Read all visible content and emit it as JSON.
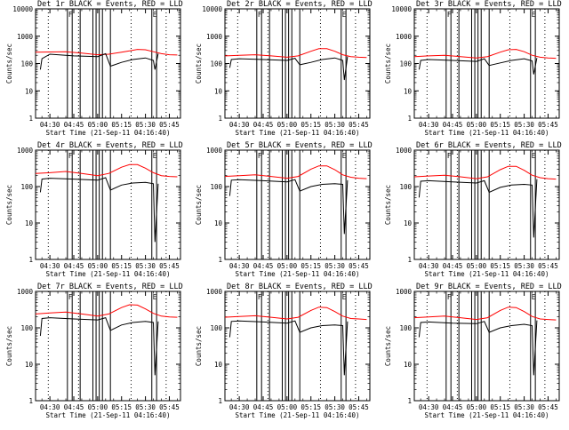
{
  "chart_data": [
    {
      "type": "line",
      "title": "Det 1r BLACK = Events, RED = LLD",
      "xlabel": "Start Time (21-Sep-11 04:16:40)",
      "ylabel": "Counts/sec",
      "yscale": "log",
      "ylim": [
        1,
        10000
      ],
      "xlim": [
        "04:21",
        "05:52"
      ],
      "y_tick_labels": [
        "1",
        "10",
        "100",
        "1000",
        "10000"
      ],
      "x_tick_labels": [
        "04:30",
        "04:45",
        "05:00",
        "05:15",
        "05:30",
        "05:45"
      ],
      "flags": [
        "F",
        "E"
      ],
      "series": [
        {
          "color": "#ff0000",
          "x": [
            "04:21",
            "04:30",
            "04:40",
            "04:50",
            "05:00",
            "05:07",
            "05:15",
            "05:20",
            "05:25",
            "05:30",
            "05:35",
            "05:40",
            "05:45",
            "05:50"
          ],
          "values": [
            260,
            265,
            270,
            240,
            210,
            220,
            260,
            290,
            330,
            320,
            270,
            230,
            210,
            205
          ]
        },
        {
          "color": "#000000",
          "x": [
            "04:24",
            "04:25",
            "04:30",
            "04:45",
            "05:00",
            "05:05",
            "05:08",
            "05:15",
            "05:22",
            "05:30",
            "05:35",
            "05:36",
            "05:38"
          ],
          "values": [
            60,
            150,
            220,
            190,
            180,
            230,
            80,
            110,
            140,
            160,
            130,
            60,
            230
          ]
        }
      ]
    },
    {
      "type": "line",
      "title": "Det 2r BLACK = Events, RED = LLD",
      "xlabel": "Start Time (21-Sep-11 04:16:40)",
      "ylabel": "Counts/sec",
      "yscale": "log",
      "ylim": [
        1,
        10000
      ],
      "xlim": [
        "04:21",
        "05:52"
      ],
      "y_tick_labels": [
        "1",
        "10",
        "100",
        "1000",
        "10000"
      ],
      "x_tick_labels": [
        "04:30",
        "04:45",
        "05:00",
        "05:15",
        "05:30",
        "05:45"
      ],
      "flags": [
        "F",
        "E"
      ],
      "series": [
        {
          "color": "#ff0000",
          "x": [
            "04:21",
            "04:30",
            "04:40",
            "04:50",
            "05:00",
            "05:07",
            "05:15",
            "05:20",
            "05:25",
            "05:30",
            "05:35",
            "05:40",
            "05:45",
            "05:50"
          ],
          "values": [
            190,
            200,
            210,
            190,
            170,
            190,
            280,
            350,
            350,
            280,
            210,
            180,
            170,
            165
          ]
        },
        {
          "color": "#000000",
          "x": [
            "04:24",
            "04:25",
            "04:30",
            "04:45",
            "05:00",
            "05:05",
            "05:08",
            "05:15",
            "05:22",
            "05:30",
            "05:35",
            "05:36",
            "05:38"
          ],
          "values": [
            70,
            140,
            150,
            140,
            130,
            155,
            90,
            110,
            140,
            160,
            130,
            25,
            180
          ]
        }
      ]
    },
    {
      "type": "line",
      "title": "Det 3r BLACK = Events, RED = LLD",
      "xlabel": "Start Time (21-Sep-11 04:16:40)",
      "ylabel": "Counts/sec",
      "yscale": "log",
      "ylim": [
        1,
        10000
      ],
      "xlim": [
        "04:21",
        "05:52"
      ],
      "y_tick_labels": [
        "1",
        "10",
        "100",
        "1000",
        "10000"
      ],
      "x_tick_labels": [
        "04:30",
        "04:45",
        "05:00",
        "05:15",
        "05:30",
        "05:45"
      ],
      "flags": [
        "F",
        "E"
      ],
      "series": [
        {
          "color": "#ff0000",
          "x": [
            "04:21",
            "04:30",
            "04:40",
            "04:50",
            "05:00",
            "05:07",
            "05:15",
            "05:20",
            "05:25",
            "05:30",
            "05:35",
            "05:40",
            "05:45",
            "05:50"
          ],
          "values": [
            180,
            190,
            200,
            180,
            160,
            180,
            260,
            320,
            330,
            270,
            200,
            170,
            160,
            155
          ]
        },
        {
          "color": "#000000",
          "x": [
            "04:24",
            "04:25",
            "04:30",
            "04:45",
            "05:00",
            "05:05",
            "05:08",
            "05:15",
            "05:22",
            "05:30",
            "05:35",
            "05:36",
            "05:38"
          ],
          "values": [
            60,
            130,
            140,
            130,
            120,
            150,
            85,
            105,
            130,
            150,
            125,
            40,
            160
          ]
        }
      ]
    },
    {
      "type": "line",
      "title": "Det 4r BLACK = Events, RED = LLD",
      "xlabel": "Start Time (21-Sep-11 04:16:40)",
      "ylabel": "Counts/sec",
      "yscale": "log",
      "ylim": [
        1,
        1000
      ],
      "xlim": [
        "04:21",
        "05:52"
      ],
      "y_tick_labels": [
        "1",
        "10",
        "100",
        "1000"
      ],
      "x_tick_labels": [
        "04:30",
        "04:45",
        "05:00",
        "05:15",
        "05:30",
        "05:45"
      ],
      "flags": [
        "F",
        "E"
      ],
      "series": [
        {
          "color": "#ff0000",
          "x": [
            "04:21",
            "04:30",
            "04:40",
            "04:50",
            "05:00",
            "05:07",
            "05:15",
            "05:20",
            "05:25",
            "05:30",
            "05:35",
            "05:40",
            "05:45",
            "05:50"
          ],
          "values": [
            230,
            240,
            260,
            230,
            200,
            230,
            340,
            400,
            400,
            320,
            240,
            200,
            190,
            185
          ]
        },
        {
          "color": "#000000",
          "x": [
            "04:24",
            "04:25",
            "04:30",
            "04:45",
            "05:00",
            "05:05",
            "05:08",
            "05:15",
            "05:22",
            "05:30",
            "05:35",
            "05:36",
            "05:38"
          ],
          "values": [
            70,
            160,
            170,
            160,
            150,
            175,
            80,
            110,
            125,
            130,
            120,
            3,
            120
          ]
        }
      ]
    },
    {
      "type": "line",
      "title": "Det 5r BLACK = Events, RED = LLD",
      "xlabel": "Start Time (21-Sep-11 04:16:40)",
      "ylabel": "Counts/sec",
      "yscale": "log",
      "ylim": [
        1,
        1000
      ],
      "xlim": [
        "04:21",
        "05:52"
      ],
      "y_tick_labels": [
        "1",
        "10",
        "100",
        "1000"
      ],
      "x_tick_labels": [
        "04:30",
        "04:45",
        "05:00",
        "05:15",
        "05:30",
        "05:45"
      ],
      "flags": [
        "F",
        "E"
      ],
      "series": [
        {
          "color": "#ff0000",
          "x": [
            "04:21",
            "04:30",
            "04:40",
            "04:50",
            "05:00",
            "05:07",
            "05:15",
            "05:20",
            "05:25",
            "05:30",
            "05:35",
            "05:40",
            "05:45",
            "05:50"
          ],
          "values": [
            190,
            200,
            210,
            190,
            170,
            190,
            300,
            370,
            370,
            290,
            210,
            180,
            170,
            165
          ]
        },
        {
          "color": "#000000",
          "x": [
            "04:24",
            "04:25",
            "04:30",
            "04:45",
            "05:00",
            "05:05",
            "05:08",
            "05:15",
            "05:22",
            "05:30",
            "05:35",
            "05:36",
            "05:38"
          ],
          "values": [
            55,
            150,
            155,
            145,
            135,
            155,
            75,
            100,
            115,
            120,
            115,
            5,
            150
          ]
        }
      ]
    },
    {
      "type": "line",
      "title": "Det 6r BLACK = Events, RED = LLD",
      "xlabel": "Start Time (21-Sep-11 04:16:40)",
      "ylabel": "Counts/sec",
      "yscale": "log",
      "ylim": [
        1,
        1000
      ],
      "xlim": [
        "04:21",
        "05:52"
      ],
      "y_tick_labels": [
        "1",
        "10",
        "100",
        "1000"
      ],
      "x_tick_labels": [
        "04:30",
        "04:45",
        "05:00",
        "05:15",
        "05:30",
        "05:45"
      ],
      "flags": [
        "F",
        "E"
      ],
      "series": [
        {
          "color": "#ff0000",
          "x": [
            "04:21",
            "04:30",
            "04:40",
            "04:50",
            "05:00",
            "05:07",
            "05:15",
            "05:20",
            "05:25",
            "05:30",
            "05:35",
            "05:40",
            "05:45",
            "05:50"
          ],
          "values": [
            185,
            195,
            205,
            185,
            165,
            185,
            290,
            360,
            360,
            280,
            205,
            175,
            165,
            160
          ]
        },
        {
          "color": "#000000",
          "x": [
            "04:24",
            "04:25",
            "04:30",
            "04:45",
            "05:00",
            "05:05",
            "05:08",
            "05:15",
            "05:22",
            "05:30",
            "05:35",
            "05:36",
            "05:38"
          ],
          "values": [
            50,
            140,
            145,
            135,
            125,
            145,
            70,
            95,
            110,
            115,
            110,
            4,
            160
          ]
        }
      ]
    },
    {
      "type": "line",
      "title": "Det 7r BLACK = Events, RED = LLD",
      "xlabel": "Start Time (21-Sep-11 04:16:40)",
      "ylabel": "Counts/sec",
      "yscale": "log",
      "ylim": [
        1,
        1000
      ],
      "xlim": [
        "04:21",
        "05:52"
      ],
      "y_tick_labels": [
        "1",
        "10",
        "100",
        "1000"
      ],
      "x_tick_labels": [
        "04:30",
        "04:45",
        "05:00",
        "05:15",
        "05:30",
        "05:45"
      ],
      "flags": [
        "F",
        "E"
      ],
      "series": [
        {
          "color": "#ff0000",
          "x": [
            "04:21",
            "04:30",
            "04:40",
            "04:50",
            "05:00",
            "05:07",
            "05:15",
            "05:20",
            "05:25",
            "05:30",
            "05:35",
            "05:40",
            "05:45",
            "05:50"
          ],
          "values": [
            240,
            255,
            270,
            240,
            210,
            240,
            360,
            430,
            420,
            330,
            250,
            210,
            200,
            195
          ]
        },
        {
          "color": "#000000",
          "x": [
            "04:24",
            "04:25",
            "04:30",
            "04:45",
            "05:00",
            "05:05",
            "05:08",
            "05:15",
            "05:22",
            "05:30",
            "05:35",
            "05:36",
            "05:38"
          ],
          "values": [
            60,
            180,
            190,
            175,
            165,
            190,
            85,
            120,
            140,
            150,
            140,
            5,
            150
          ]
        }
      ]
    },
    {
      "type": "line",
      "title": "Det 8r BLACK = Events, RED = LLD",
      "xlabel": "Start Time (21-Sep-11 04:16:40)",
      "ylabel": "Counts/sec",
      "yscale": "log",
      "ylim": [
        1,
        1000
      ],
      "xlim": [
        "04:21",
        "05:52"
      ],
      "y_tick_labels": [
        "1",
        "10",
        "100",
        "1000"
      ],
      "x_tick_labels": [
        "04:30",
        "04:45",
        "05:00",
        "05:15",
        "05:30",
        "05:45"
      ],
      "flags": [
        "F",
        "E"
      ],
      "series": [
        {
          "color": "#ff0000",
          "x": [
            "04:21",
            "04:30",
            "04:40",
            "04:50",
            "05:00",
            "05:07",
            "05:15",
            "05:20",
            "05:25",
            "05:30",
            "05:35",
            "05:40",
            "05:45",
            "05:50"
          ],
          "values": [
            195,
            205,
            215,
            195,
            175,
            195,
            300,
            370,
            360,
            280,
            210,
            180,
            175,
            170
          ]
        },
        {
          "color": "#000000",
          "x": [
            "04:24",
            "04:25",
            "04:30",
            "04:45",
            "05:00",
            "05:05",
            "05:08",
            "05:15",
            "05:22",
            "05:30",
            "05:35",
            "05:36",
            "05:38"
          ],
          "values": [
            55,
            150,
            155,
            145,
            135,
            155,
            75,
            100,
            115,
            120,
            115,
            5,
            150
          ]
        }
      ]
    },
    {
      "type": "line",
      "title": "Det 9r BLACK = Events, RED = LLD",
      "xlabel": "Start Time (21-Sep-11 04:16:40)",
      "ylabel": "Counts/sec",
      "yscale": "log",
      "ylim": [
        1,
        1000
      ],
      "xlim": [
        "04:21",
        "05:52"
      ],
      "y_tick_labels": [
        "1",
        "10",
        "100",
        "1000"
      ],
      "x_tick_labels": [
        "04:30",
        "04:45",
        "05:00",
        "05:15",
        "05:30",
        "05:45"
      ],
      "flags": [
        "F",
        "E"
      ],
      "series": [
        {
          "color": "#ff0000",
          "x": [
            "04:21",
            "04:30",
            "04:40",
            "04:50",
            "05:00",
            "05:07",
            "05:15",
            "05:20",
            "05:25",
            "05:30",
            "05:35",
            "05:40",
            "05:45",
            "05:50"
          ],
          "values": [
            190,
            200,
            210,
            190,
            170,
            190,
            300,
            370,
            360,
            280,
            205,
            175,
            170,
            165
          ]
        },
        {
          "color": "#000000",
          "x": [
            "04:24",
            "04:25",
            "04:30",
            "04:45",
            "05:00",
            "05:05",
            "05:08",
            "05:15",
            "05:22",
            "05:30",
            "05:35",
            "05:36",
            "05:38"
          ],
          "values": [
            55,
            140,
            145,
            135,
            130,
            150,
            75,
            100,
            115,
            125,
            115,
            5,
            160
          ]
        }
      ]
    }
  ],
  "events": {
    "solid_lines": [
      "04:41",
      "04:44",
      "04:49",
      "04:57",
      "04:59",
      "05:01",
      "05:03",
      "05:08",
      "05:34",
      "05:37"
    ],
    "dotted_lines": [
      "04:29",
      "04:48",
      "05:21",
      "05:43"
    ]
  },
  "colors": {
    "lld": "#ff0000",
    "events": "#000000",
    "axes": "#000000",
    "background": "#ffffff"
  }
}
